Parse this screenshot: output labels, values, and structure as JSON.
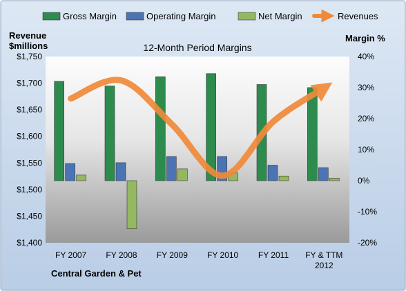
{
  "chart_data": {
    "type": "bar",
    "title": "12-Month Period Margins",
    "company": "Central Garden & Pet",
    "left_axis": {
      "label_line1": "Revenue",
      "label_line2": "$millions",
      "min": 1400,
      "max": 1750,
      "step": 50
    },
    "right_axis": {
      "label": "Margin %",
      "min": -20,
      "max": 40,
      "step": 10
    },
    "categories": [
      {
        "line1": "FY 2007",
        "line2": ""
      },
      {
        "line1": "FY 2008",
        "line2": ""
      },
      {
        "line1": "FY 2009",
        "line2": ""
      },
      {
        "line1": "FY 2010",
        "line2": ""
      },
      {
        "line1": "FY 2011",
        "line2": ""
      },
      {
        "line1": "FY & TTM",
        "line2": "2012"
      }
    ],
    "series": [
      {
        "name": "Gross Margin",
        "type": "bar",
        "axis": "right",
        "color": "#2e8b4e",
        "values": [
          32.0,
          30.5,
          33.5,
          34.5,
          31.0,
          30.0
        ]
      },
      {
        "name": "Operating Margin",
        "type": "bar",
        "axis": "right",
        "color": "#4a74b4",
        "values": [
          5.5,
          5.8,
          7.8,
          7.8,
          5.0,
          4.2
        ]
      },
      {
        "name": "Net Margin",
        "type": "bar",
        "axis": "right",
        "color": "#94b860",
        "values": [
          1.8,
          -15.5,
          3.8,
          2.5,
          1.5,
          0.8
        ]
      },
      {
        "name": "Revenues",
        "type": "line",
        "axis": "left",
        "color": "#f08a3a",
        "values": [
          1671,
          1705,
          1622,
          1526,
          1628,
          1691
        ]
      }
    ],
    "legend_position": "top",
    "grid": false
  }
}
